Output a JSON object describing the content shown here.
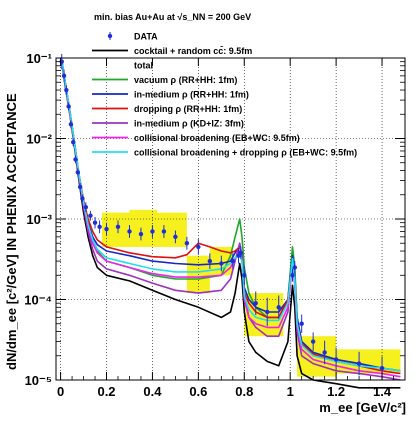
{
  "chart_data": {
    "type": "line",
    "title": "min. bias Au+Au at √s_NN = 200 GeV",
    "xlabel": "m_ee [GeV/c²]",
    "ylabel": "dN/dm_ee [c²/GeV] IN PHENIX ACCEPTANCE",
    "xlim": [
      -0.02,
      1.5
    ],
    "ylim": [
      1e-05,
      0.1
    ],
    "yscale": "log",
    "grid": true,
    "legend_position": "top-right",
    "x_ticks": [
      0,
      0.2,
      0.4,
      0.6,
      0.8,
      1,
      1.2,
      1.4
    ],
    "x_tick_labels": [
      "0",
      "0.2",
      "0.4",
      "0.6",
      "0.8",
      "1",
      "1.2",
      "1.4"
    ],
    "y_ticks": [
      1e-05,
      0.0001,
      0.001,
      0.01,
      0.1
    ],
    "y_tick_labels": [
      "10⁻⁵",
      "10⁻⁴",
      "10⁻³",
      "10⁻²",
      "10⁻¹"
    ],
    "legend": [
      {
        "label": "DATA",
        "color": "#1f2fd6",
        "kind": "marker"
      },
      {
        "label": "cocktail + random cc̄: 9.5fm",
        "color": "#000000",
        "kind": "line"
      },
      {
        "label": "total",
        "color": "#000000",
        "kind": "none"
      },
      {
        "label": "vacuum ρ (RR+HH: 1fm)",
        "color": "#1fa82a",
        "kind": "line"
      },
      {
        "label": "in-medium ρ (RR+HH: 1fm)",
        "color": "#1428c8",
        "kind": "line"
      },
      {
        "label": "dropping ρ (RR+HH: 1fm)",
        "color": "#e01010",
        "kind": "line"
      },
      {
        "label": "in-medium ρ (KD+IZ: 3fm)",
        "color": "#a030c0",
        "kind": "line"
      },
      {
        "label": "collisional broadening (EB+WC: 9.5fm)",
        "color": "#f020f0",
        "kind": "line"
      },
      {
        "label": "collisional broadening + dropping ρ (EB+WC: 9.5fm)",
        "color": "#20e0f0",
        "kind": "line"
      }
    ],
    "syst_boxes": [
      {
        "x": [
          0.18,
          0.3
        ],
        "y": [
          0.00045,
          0.0012
        ]
      },
      {
        "x": [
          0.3,
          0.42
        ],
        "y": [
          0.00045,
          0.0013
        ]
      },
      {
        "x": [
          0.42,
          0.55
        ],
        "y": [
          0.00045,
          0.0012
        ]
      },
      {
        "x": [
          0.55,
          0.65
        ],
        "y": [
          0.00012,
          0.00035
        ]
      },
      {
        "x": [
          0.65,
          0.75
        ],
        "y": [
          0.0002,
          0.00045
        ]
      },
      {
        "x": [
          0.8,
          0.97
        ],
        "y": [
          3.5e-05,
          0.00012
        ]
      },
      {
        "x": [
          1.03,
          1.2
        ],
        "y": [
          1.1e-05,
          3.5e-05
        ]
      },
      {
        "x": [
          1.2,
          1.48
        ],
        "y": [
          1.2e-05,
          2.4e-05
        ]
      }
    ],
    "data_points": {
      "x": [
        0.005,
        0.015,
        0.025,
        0.035,
        0.045,
        0.055,
        0.065,
        0.075,
        0.085,
        0.095,
        0.11,
        0.13,
        0.15,
        0.17,
        0.2,
        0.25,
        0.3,
        0.35,
        0.4,
        0.45,
        0.5,
        0.55,
        0.6,
        0.65,
        0.7,
        0.75,
        0.775,
        0.785,
        0.8,
        0.85,
        0.9,
        0.95,
        1.01,
        1.02,
        1.05,
        1.1,
        1.15,
        1.2,
        1.3,
        1.4
      ],
      "y": [
        0.09,
        0.06,
        0.04,
        0.025,
        0.015,
        0.009,
        0.0055,
        0.0038,
        0.0025,
        0.0018,
        0.0014,
        0.0011,
        0.0009,
        0.0008,
        0.00075,
        0.0008,
        0.0007,
        0.00065,
        0.0007,
        0.0007,
        0.0006,
        0.0005,
        0.00045,
        0.0003,
        0.00028,
        0.0003,
        0.00035,
        0.00038,
        0.0002,
        9e-05,
        7e-05,
        8e-05,
        0.0002,
        0.00025,
        5e-05,
        3e-05,
        2.2e-05,
        1.8e-05,
        1.6e-05,
        1.4e-05
      ],
      "err": [
        0.25,
        0.2,
        0.15,
        0.12,
        0.12,
        0.12,
        0.12,
        0.12,
        0.12,
        0.12,
        0.15,
        0.15,
        0.18,
        0.2,
        0.2,
        0.2,
        0.2,
        0.2,
        0.2,
        0.2,
        0.2,
        0.2,
        0.25,
        0.25,
        0.25,
        0.25,
        0.25,
        0.2,
        0.3,
        0.4,
        0.5,
        0.4,
        0.2,
        0.2,
        0.3,
        0.3,
        0.4,
        0.4,
        0.4,
        0.4
      ]
    },
    "series": [
      {
        "name": "cocktail + random cc̄: 9.5fm",
        "color": "#000000",
        "x": [
          0.005,
          0.02,
          0.04,
          0.06,
          0.08,
          0.1,
          0.12,
          0.14,
          0.16,
          0.2,
          0.3,
          0.4,
          0.5,
          0.6,
          0.7,
          0.74,
          0.76,
          0.78,
          0.79,
          0.8,
          0.82,
          0.85,
          0.9,
          0.95,
          0.99,
          1.01,
          1.02,
          1.03,
          1.05,
          1.1,
          1.2,
          1.3,
          1.4,
          1.48
        ],
        "y": [
          0.09,
          0.045,
          0.02,
          0.008,
          0.003,
          0.0012,
          0.0006,
          0.00035,
          0.00025,
          0.0002,
          0.00017,
          0.00013,
          0.0001,
          8e-05,
          6e-05,
          7e-05,
          0.00012,
          0.00028,
          0.00018,
          7e-05,
          3e-05,
          2.2e-05,
          1.7e-05,
          1.5e-05,
          3e-05,
          0.00015,
          8e-05,
          2e-05,
          1.2e-05,
          1e-05,
          9e-06,
          8e-06,
          8e-06,
          8e-06
        ]
      },
      {
        "name": "vacuum ρ (RR+HH: 1fm)",
        "color": "#1fa82a",
        "x": [
          0.005,
          0.02,
          0.04,
          0.06,
          0.08,
          0.1,
          0.12,
          0.14,
          0.16,
          0.2,
          0.3,
          0.4,
          0.5,
          0.6,
          0.7,
          0.74,
          0.76,
          0.78,
          0.79,
          0.8,
          0.82,
          0.85,
          0.9,
          0.95,
          0.99,
          1.01,
          1.02,
          1.03,
          1.05,
          1.1,
          1.2,
          1.3,
          1.4,
          1.48
        ],
        "y": [
          0.095,
          0.05,
          0.022,
          0.009,
          0.0035,
          0.0015,
          0.0008,
          0.0005,
          0.0004,
          0.0003,
          0.00025,
          0.0002,
          0.00018,
          0.00018,
          0.0002,
          0.00035,
          0.0006,
          0.001,
          0.0006,
          0.00025,
          0.00012,
          8e-05,
          6e-05,
          6e-05,
          0.0001,
          0.00045,
          0.00025,
          6e-05,
          3e-05,
          2.2e-05,
          1.8e-05,
          1.6e-05,
          1.4e-05,
          1.3e-05
        ]
      },
      {
        "name": "in-medium ρ (RR+HH: 1fm)",
        "color": "#1428c8",
        "x": [
          0.005,
          0.02,
          0.04,
          0.06,
          0.08,
          0.1,
          0.12,
          0.14,
          0.16,
          0.2,
          0.3,
          0.4,
          0.5,
          0.6,
          0.7,
          0.74,
          0.76,
          0.78,
          0.79,
          0.8,
          0.82,
          0.85,
          0.9,
          0.95,
          0.99,
          1.01,
          1.02,
          1.03,
          1.05,
          1.1,
          1.2,
          1.3,
          1.4,
          1.48
        ],
        "y": [
          0.095,
          0.05,
          0.022,
          0.009,
          0.0035,
          0.0016,
          0.0009,
          0.0006,
          0.00048,
          0.0004,
          0.00035,
          0.0003,
          0.00028,
          0.00027,
          0.00028,
          0.0003,
          0.00038,
          0.00045,
          0.00035,
          0.00014,
          0.0001,
          8e-05,
          7e-05,
          7e-05,
          0.0001,
          0.00035,
          0.0002,
          6e-05,
          3e-05,
          2.2e-05,
          1.8e-05,
          1.6e-05,
          1.4e-05,
          1.3e-05
        ]
      },
      {
        "name": "dropping ρ (RR+HH: 1fm)",
        "color": "#e01010",
        "x": [
          0.005,
          0.02,
          0.04,
          0.06,
          0.08,
          0.1,
          0.12,
          0.14,
          0.16,
          0.2,
          0.3,
          0.4,
          0.5,
          0.55,
          0.6,
          0.65,
          0.7,
          0.74,
          0.76,
          0.78,
          0.79,
          0.8,
          0.82,
          0.85,
          0.9,
          0.95,
          0.99,
          1.01,
          1.02,
          1.03,
          1.05,
          1.1,
          1.2,
          1.3,
          1.4,
          1.48
        ],
        "y": [
          0.095,
          0.05,
          0.022,
          0.009,
          0.0036,
          0.0017,
          0.001,
          0.0007,
          0.00055,
          0.00045,
          0.00038,
          0.00034,
          0.00033,
          0.00036,
          0.0005,
          0.00045,
          0.0004,
          0.00038,
          0.0004,
          0.00045,
          0.00035,
          0.00012,
          9e-05,
          7e-05,
          6e-05,
          6e-05,
          0.0001,
          0.0003,
          0.00018,
          5e-05,
          2.8e-05,
          2.1e-05,
          1.7e-05,
          1.5e-05,
          1.3e-05,
          1.2e-05
        ]
      },
      {
        "name": "in-medium ρ (KD+IZ: 3fm)",
        "color": "#a030c0",
        "x": [
          0.005,
          0.02,
          0.04,
          0.06,
          0.08,
          0.1,
          0.12,
          0.14,
          0.16,
          0.2,
          0.3,
          0.4,
          0.5,
          0.6,
          0.7,
          0.74,
          0.76,
          0.78,
          0.79,
          0.8,
          0.82,
          0.85,
          0.9,
          0.95,
          0.99,
          1.01,
          1.02,
          1.03,
          1.05,
          1.1,
          1.2,
          1.3,
          1.4,
          1.48
        ],
        "y": [
          0.092,
          0.048,
          0.021,
          0.0085,
          0.0032,
          0.0014,
          0.0007,
          0.00042,
          0.0003,
          0.00024,
          0.0002,
          0.00016,
          0.00013,
          0.00012,
          0.00013,
          0.00018,
          0.0003,
          0.0005,
          0.00035,
          0.00012,
          6e-05,
          4.5e-05,
          3.5e-05,
          3.5e-05,
          7e-05,
          0.0003,
          0.00015,
          4e-05,
          2e-05,
          1.6e-05,
          1.3e-05,
          1.2e-05,
          1.1e-05,
          1e-05
        ]
      },
      {
        "name": "collisional broadening (EB+WC: 9.5fm)",
        "color": "#f020f0",
        "x": [
          0.005,
          0.02,
          0.04,
          0.06,
          0.08,
          0.1,
          0.12,
          0.14,
          0.16,
          0.2,
          0.3,
          0.4,
          0.5,
          0.6,
          0.7,
          0.74,
          0.76,
          0.78,
          0.79,
          0.8,
          0.82,
          0.85,
          0.9,
          0.95,
          0.99,
          1.01,
          1.02,
          1.03,
          1.05,
          1.1,
          1.2,
          1.3,
          1.4,
          1.48
        ],
        "y": [
          0.094,
          0.049,
          0.021,
          0.0088,
          0.0034,
          0.0015,
          0.00078,
          0.0005,
          0.00038,
          0.0003,
          0.00025,
          0.00021,
          0.00019,
          0.00019,
          0.0002,
          0.00025,
          0.00032,
          0.0004,
          0.0003,
          0.0001,
          6e-05,
          5e-05,
          4.5e-05,
          4.5e-05,
          8e-05,
          0.0003,
          0.00016,
          4.5e-05,
          2.4e-05,
          1.8e-05,
          1.5e-05,
          1.3e-05,
          1.2e-05,
          1.1e-05
        ]
      },
      {
        "name": "collisional broadening + dropping ρ (EB+WC: 9.5fm)",
        "color": "#20e0f0",
        "x": [
          0.005,
          0.02,
          0.04,
          0.06,
          0.08,
          0.1,
          0.12,
          0.14,
          0.16,
          0.2,
          0.3,
          0.4,
          0.5,
          0.6,
          0.7,
          0.74,
          0.76,
          0.78,
          0.79,
          0.8,
          0.82,
          0.85,
          0.9,
          0.95,
          0.99,
          1.01,
          1.02,
          1.03,
          1.05,
          1.1,
          1.2,
          1.3,
          1.4,
          1.48
        ],
        "y": [
          0.095,
          0.05,
          0.022,
          0.009,
          0.0036,
          0.0016,
          0.00085,
          0.00055,
          0.00042,
          0.00033,
          0.00028,
          0.00024,
          0.00022,
          0.00022,
          0.00024,
          0.00028,
          0.00033,
          0.00038,
          0.0003,
          0.00011,
          7.5e-05,
          6e-05,
          5.5e-05,
          5.5e-05,
          9e-05,
          0.00032,
          0.00018,
          5e-05,
          2.7e-05,
          2e-05,
          1.7e-05,
          1.5e-05,
          1.4e-05,
          1.3e-05
        ]
      }
    ]
  }
}
